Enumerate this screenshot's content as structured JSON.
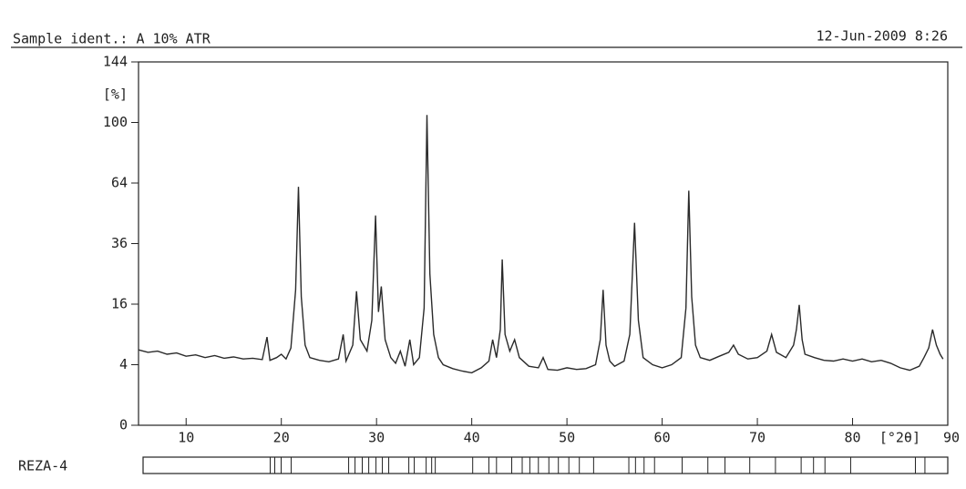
{
  "chart_data": {
    "type": "line",
    "title": "Sample ident.: A 10% ATR",
    "subtitle": "12-Jun-2009  8:26",
    "y_label": "[%]",
    "x_label": "[°2θ]",
    "y_scale": "sqrt",
    "color": "#2a2a2a",
    "xlim": [
      5,
      90
    ],
    "xticks": [
      10,
      20,
      30,
      40,
      50,
      60,
      70,
      80,
      90
    ],
    "ylim": [
      0,
      144
    ],
    "yticks": [
      0,
      4,
      16,
      36,
      64,
      100,
      144
    ],
    "x": [
      5,
      6,
      7,
      8,
      9,
      10,
      11,
      12,
      13,
      14,
      15,
      16,
      17,
      18,
      18.5,
      18.8,
      19.5,
      20,
      20.5,
      21,
      21.5,
      21.8,
      22.1,
      22.5,
      23,
      24,
      25,
      26,
      26.5,
      26.8,
      27.5,
      27.9,
      28.3,
      29,
      29.5,
      29.9,
      30.2,
      30.5,
      30.9,
      31.5,
      32,
      32.5,
      33,
      33.5,
      33.9,
      34.5,
      35,
      35.3,
      35.6,
      36,
      36.5,
      37,
      38,
      39,
      40,
      41,
      41.8,
      42.2,
      42.6,
      43,
      43.2,
      43.5,
      44,
      44.5,
      45,
      46,
      47,
      47.5,
      48,
      49,
      50,
      51,
      52,
      53,
      53.5,
      53.8,
      54.1,
      54.5,
      55,
      56,
      56.6,
      57.1,
      57.5,
      58,
      59,
      60,
      61,
      62,
      62.5,
      62.8,
      63.1,
      63.5,
      64,
      65,
      66,
      67,
      67.5,
      68,
      69,
      70,
      71,
      71.5,
      72,
      73,
      73.8,
      74.1,
      74.4,
      74.7,
      75,
      76,
      77,
      78,
      79,
      80,
      81,
      82,
      83,
      84,
      85,
      86,
      87,
      87.5,
      88,
      88.4,
      88.8,
      89.2,
      89.5
    ],
    "values": [
      6.2,
      5.8,
      6.0,
      5.5,
      5.7,
      5.2,
      5.4,
      5.0,
      5.3,
      4.9,
      5.1,
      4.8,
      4.9,
      4.7,
      8.5,
      4.6,
      5.0,
      5.5,
      4.8,
      6.5,
      20,
      62,
      18,
      7,
      5,
      4.6,
      4.4,
      4.8,
      9,
      4.5,
      7,
      19.6,
      8,
      6,
      12,
      48,
      14,
      21,
      8,
      5,
      4.2,
      6,
      3.8,
      8,
      4,
      5,
      15,
      105,
      25,
      9,
      5,
      4,
      3.5,
      3.2,
      3,
      3.6,
      4.5,
      8,
      5,
      10,
      30,
      9,
      6,
      8,
      5,
      3.8,
      3.6,
      5,
      3.4,
      3.3,
      3.6,
      3.4,
      3.5,
      4,
      8,
      20,
      7,
      4.5,
      3.8,
      4.5,
      9,
      44.7,
      12,
      5,
      4,
      3.6,
      4,
      5,
      15,
      60,
      18,
      7,
      5,
      4.6,
      5.2,
      5.8,
      7,
      5.5,
      4.8,
      5,
      6,
      9,
      5.8,
      5,
      7,
      10,
      15.8,
      8,
      5.5,
      5,
      4.6,
      4.5,
      4.8,
      4.5,
      4.8,
      4.4,
      4.6,
      4.2,
      3.6,
      3.3,
      3.8,
      5,
      6.5,
      10,
      7,
      5.5,
      4.8
    ],
    "reference": {
      "name": "REZA-4",
      "positions": [
        18.83,
        19.31,
        19.98,
        21.03,
        27.07,
        27.74,
        28.5,
        29.18,
        29.94,
        30.61,
        31.28,
        33.39,
        33.96,
        35.21,
        35.79,
        36.17,
        40.1,
        41.8,
        42.6,
        44.2,
        45.3,
        46.1,
        47.0,
        48.1,
        49.1,
        50.2,
        51.3,
        52.8,
        56.5,
        57.2,
        58.1,
        59.2,
        62.1,
        64.8,
        66.6,
        69.2,
        71.9,
        74.6,
        75.9,
        77.1,
        79.8,
        86.6,
        87.6
      ]
    }
  }
}
